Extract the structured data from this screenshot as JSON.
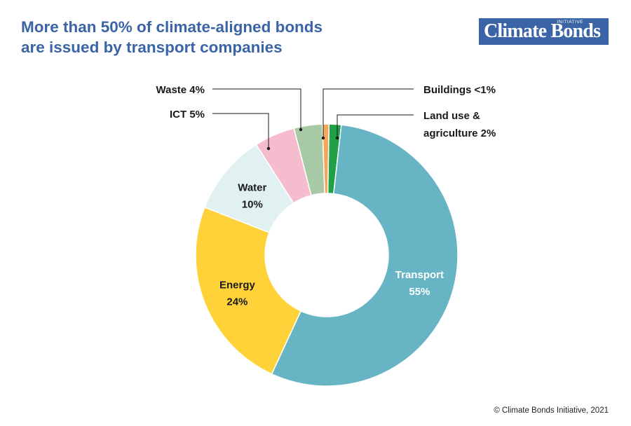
{
  "header": {
    "title_line1": "More than 50% of climate-aligned bonds",
    "title_line2": "are issued by transport companies"
  },
  "logo": {
    "text": "Climate Bonds",
    "subtext": "INITIATIVE",
    "background": "#3a64a6"
  },
  "footer": {
    "copyright": "© Climate Bonds Initiative, 2021"
  },
  "chart_data": {
    "type": "pie",
    "style": "donut",
    "title": "More than 50% of climate-aligned bonds are issued by transport companies",
    "unit": "%",
    "slices": [
      {
        "name": "Land use & agriculture",
        "label_lines": [
          "Land use &",
          "agriculture 2%"
        ],
        "value": 1.5,
        "value_label": "2%",
        "color": "#21a048",
        "label_mode": "leader-right"
      },
      {
        "name": "Transport",
        "label_lines": [
          "Transport",
          "55%"
        ],
        "value": 55,
        "value_label": "55%",
        "color": "#67b4c5",
        "label_mode": "inside-light"
      },
      {
        "name": "Energy",
        "label_lines": [
          "Energy",
          "24%"
        ],
        "value": 24,
        "value_label": "24%",
        "color": "#ffd23a",
        "label_mode": "inside-dark"
      },
      {
        "name": "Water",
        "label_lines": [
          "Water",
          "10%"
        ],
        "value": 10,
        "value_label": "10%",
        "color": "#e1f0f0",
        "label_mode": "inside-dark"
      },
      {
        "name": "ICT",
        "label_lines": [
          "ICT 5%"
        ],
        "value": 5,
        "value_label": "5%",
        "color": "#f5bccd",
        "label_mode": "leader-left"
      },
      {
        "name": "Waste",
        "label_lines": [
          "Waste 4%"
        ],
        "value": 3.5,
        "value_label": "4%",
        "color": "#a7c9a6",
        "label_mode": "leader-left"
      },
      {
        "name": "Buildings",
        "label_lines": [
          "Buildings <1%"
        ],
        "value": 0.8,
        "value_label": "<1%",
        "color": "#f4a65a",
        "label_mode": "leader-right"
      }
    ]
  }
}
